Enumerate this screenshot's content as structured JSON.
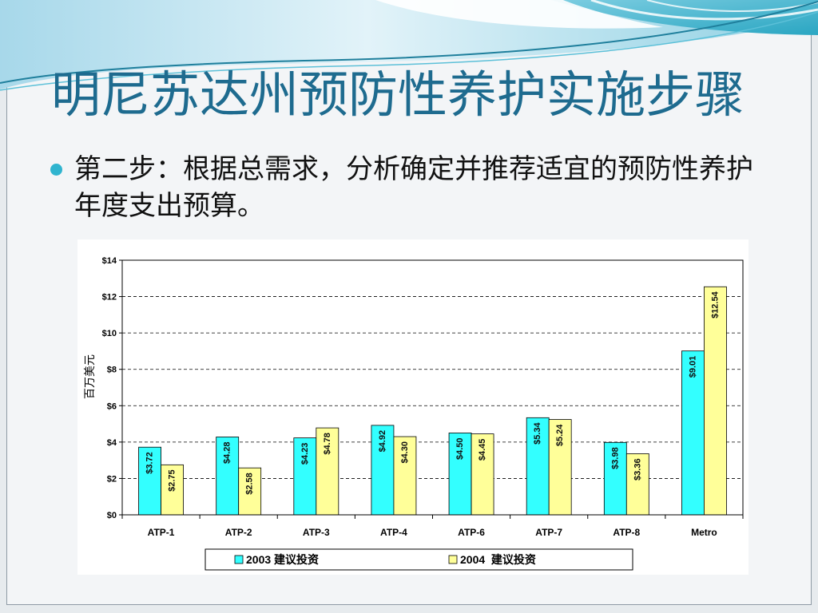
{
  "slide": {
    "title": "明尼苏达州预防性养护实施步骤",
    "bullet": "第二步：根据总需求，分析确定并推荐适宜的预防性养护年度支出预算。"
  },
  "colors": {
    "title": "#1e6b8f",
    "bullet_dot": "#2fb4cf",
    "header_teal": "#2aa6c2",
    "background": "#f3f5f7"
  },
  "chart_data": {
    "type": "bar",
    "title": "",
    "xlabel": "",
    "ylabel": "百万美元",
    "categories": [
      "ATP-1",
      "ATP-2",
      "ATP-3",
      "ATP-4",
      "ATP-6",
      "ATP-7",
      "ATP-8",
      "Metro"
    ],
    "series": [
      {
        "name": "2003 建议投资",
        "values": [
          3.72,
          4.28,
          4.23,
          4.92,
          4.5,
          5.34,
          3.98,
          9.01
        ],
        "color": "#33ffff"
      },
      {
        "name": "2004  建议投资",
        "values": [
          2.75,
          2.58,
          4.78,
          4.3,
          4.45,
          5.24,
          3.36,
          12.54
        ],
        "color": "#ffff99"
      }
    ],
    "value_label_prefix": "$",
    "ylim": [
      0,
      14
    ],
    "yticks": [
      0,
      2,
      4,
      6,
      8,
      10,
      12,
      14
    ],
    "ytick_labels": [
      "$0",
      "$2",
      "$4",
      "$6",
      "$8",
      "$10",
      "$12",
      "$14"
    ],
    "grid": "horizontal dashed",
    "legend": "bottom"
  }
}
